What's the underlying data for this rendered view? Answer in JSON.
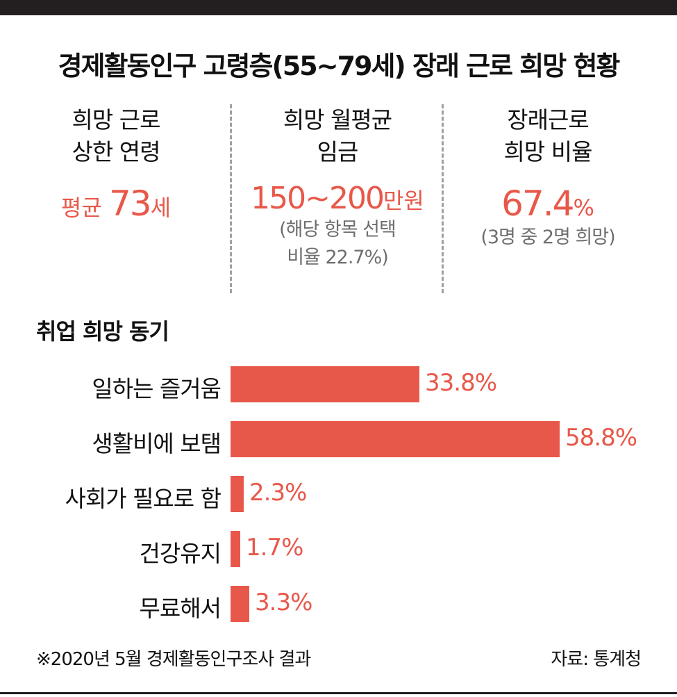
{
  "title": "경제활동인구 고령층(55~79세) 장래 근로 희망 현황",
  "stats": [
    {
      "label_1": "희망 근로",
      "label_2": "상한 연령",
      "value_prefix": "평균 ",
      "value_big": "73",
      "value_unit": "세",
      "note_1": "",
      "note_2": ""
    },
    {
      "label_1": "희망 월평균",
      "label_2": "임금",
      "value_prefix": "",
      "value_big": "150~200",
      "value_unit": "만원",
      "note_1": "(해당 항목 선택",
      "note_2": "비율 22.7%)"
    },
    {
      "label_1": "장래근로",
      "label_2": "희망 비율",
      "value_prefix": "",
      "value_big": "67.4",
      "value_unit": "%",
      "note_1": "(3명 중 2명 희망)",
      "note_2": ""
    }
  ],
  "section_title": "취업 희망 동기",
  "chart_data": {
    "type": "bar",
    "orientation": "horizontal",
    "title": "취업 희망 동기",
    "categories": [
      "일하는 즐거움",
      "생활비에 보탬",
      "사회가 필요로 함",
      "건강유지",
      "무료해서"
    ],
    "values": [
      33.8,
      58.8,
      2.3,
      1.7,
      3.3
    ],
    "value_labels": [
      "33.8%",
      "58.8%",
      "2.3%",
      "1.7%",
      "3.3%"
    ],
    "unit": "%",
    "bar_color": "#e8584a",
    "xlim": [
      0,
      58.8
    ],
    "grid": false,
    "legend": "none"
  },
  "footnote": "※2020년 5월 경제활동인구조사 결과",
  "source": "자료: 통계청",
  "colors": {
    "accent": "#e8584a",
    "dark": "#231f20",
    "note": "#6e6e6e"
  }
}
